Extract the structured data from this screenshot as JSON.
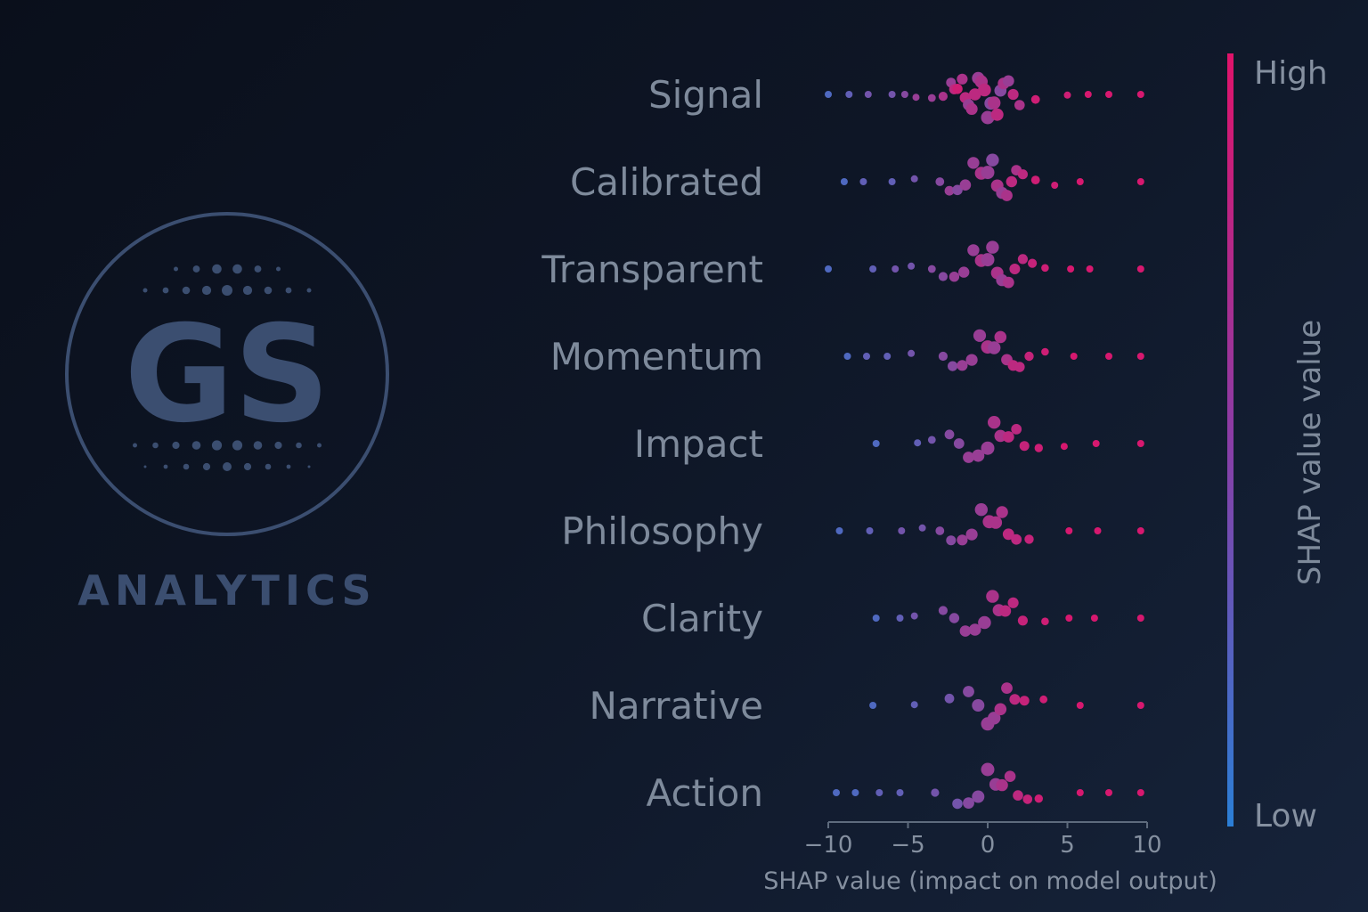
{
  "brand": {
    "logo_text": "GS",
    "logo_word": "ANALYTICS",
    "color": "#3b4e70"
  },
  "chart_data": {
    "type": "scatter",
    "subtype": "shap-beeswarm",
    "xlabel": "SHAP value (impact on model output)",
    "xlim": [
      -10,
      10
    ],
    "xticks": [
      -10,
      -5,
      0,
      5,
      10
    ],
    "xtick_labels": [
      "−10",
      "−5",
      "0",
      "5",
      "10"
    ],
    "colorbar": {
      "high_label": "High",
      "low_label": "Low",
      "title": "SHAP value value",
      "high_color": "#e0136a",
      "low_color": "#2b7fd6"
    },
    "features": [
      {
        "name": "Signal",
        "points": [
          [
            -10,
            0.2
          ],
          [
            -8.7,
            0.3
          ],
          [
            -7.5,
            0.4
          ],
          [
            -6.0,
            0.4
          ],
          [
            -5.2,
            0.5
          ],
          [
            -4.5,
            0.6
          ],
          [
            -3.5,
            0.6
          ],
          [
            -2.8,
            0.7
          ],
          [
            -2.3,
            0.6
          ],
          [
            -2.1,
            0.8
          ],
          [
            -1.9,
            0.9
          ],
          [
            -1.6,
            0.7
          ],
          [
            -1.4,
            0.8
          ],
          [
            -1.2,
            0.6
          ],
          [
            -1.0,
            0.7
          ],
          [
            -0.8,
            0.8
          ],
          [
            -0.6,
            0.6
          ],
          [
            -0.4,
            0.7
          ],
          [
            -0.2,
            0.8
          ],
          [
            0.0,
            0.6
          ],
          [
            0.2,
            0.5
          ],
          [
            0.4,
            0.7
          ],
          [
            0.6,
            0.8
          ],
          [
            0.8,
            0.5
          ],
          [
            1.0,
            0.7
          ],
          [
            1.3,
            0.6
          ],
          [
            1.6,
            0.8
          ],
          [
            2.0,
            0.7
          ],
          [
            3.0,
            0.9
          ],
          [
            5.0,
            0.9
          ],
          [
            6.3,
            0.95
          ],
          [
            7.6,
            0.95
          ],
          [
            9.6,
            0.95
          ]
        ]
      },
      {
        "name": "Calibrated",
        "points": [
          [
            -9.0,
            0.2
          ],
          [
            -7.8,
            0.3
          ],
          [
            -6.0,
            0.3
          ],
          [
            -4.6,
            0.4
          ],
          [
            -3.0,
            0.5
          ],
          [
            -2.4,
            0.6
          ],
          [
            -1.9,
            0.5
          ],
          [
            -1.4,
            0.6
          ],
          [
            -0.9,
            0.6
          ],
          [
            -0.4,
            0.7
          ],
          [
            0.0,
            0.6
          ],
          [
            0.3,
            0.5
          ],
          [
            0.6,
            0.7
          ],
          [
            0.9,
            0.6
          ],
          [
            1.2,
            0.7
          ],
          [
            1.5,
            0.8
          ],
          [
            1.8,
            0.7
          ],
          [
            2.2,
            0.8
          ],
          [
            3.0,
            0.9
          ],
          [
            4.2,
            0.9
          ],
          [
            5.8,
            0.95
          ],
          [
            9.6,
            0.95
          ]
        ]
      },
      {
        "name": "Transparent",
        "points": [
          [
            -10,
            0.2
          ],
          [
            -7.2,
            0.3
          ],
          [
            -5.8,
            0.4
          ],
          [
            -4.8,
            0.4
          ],
          [
            -3.5,
            0.5
          ],
          [
            -2.8,
            0.5
          ],
          [
            -2.1,
            0.6
          ],
          [
            -1.5,
            0.6
          ],
          [
            -0.9,
            0.6
          ],
          [
            -0.4,
            0.7
          ],
          [
            0.0,
            0.6
          ],
          [
            0.3,
            0.6
          ],
          [
            0.6,
            0.7
          ],
          [
            0.9,
            0.6
          ],
          [
            1.3,
            0.7
          ],
          [
            1.7,
            0.8
          ],
          [
            2.2,
            0.8
          ],
          [
            2.8,
            0.85
          ],
          [
            3.6,
            0.9
          ],
          [
            5.2,
            0.95
          ],
          [
            6.4,
            0.95
          ],
          [
            9.6,
            0.95
          ]
        ]
      },
      {
        "name": "Momentum",
        "points": [
          [
            -8.8,
            0.2
          ],
          [
            -7.6,
            0.3
          ],
          [
            -6.3,
            0.3
          ],
          [
            -4.8,
            0.4
          ],
          [
            -2.8,
            0.5
          ],
          [
            -2.2,
            0.5
          ],
          [
            -1.6,
            0.6
          ],
          [
            -1.0,
            0.6
          ],
          [
            -0.5,
            0.6
          ],
          [
            0.0,
            0.7
          ],
          [
            0.4,
            0.6
          ],
          [
            0.8,
            0.7
          ],
          [
            1.2,
            0.7
          ],
          [
            1.6,
            0.8
          ],
          [
            2.0,
            0.8
          ],
          [
            2.6,
            0.85
          ],
          [
            3.6,
            0.9
          ],
          [
            5.4,
            0.95
          ],
          [
            7.6,
            0.95
          ],
          [
            9.6,
            0.95
          ]
        ]
      },
      {
        "name": "Impact",
        "points": [
          [
            -7.0,
            0.2
          ],
          [
            -4.4,
            0.3
          ],
          [
            -3.5,
            0.4
          ],
          [
            -2.4,
            0.5
          ],
          [
            -1.8,
            0.5
          ],
          [
            -1.2,
            0.6
          ],
          [
            -0.6,
            0.6
          ],
          [
            0.0,
            0.6
          ],
          [
            0.4,
            0.7
          ],
          [
            0.8,
            0.7
          ],
          [
            1.3,
            0.8
          ],
          [
            1.8,
            0.8
          ],
          [
            2.3,
            0.85
          ],
          [
            3.2,
            0.9
          ],
          [
            4.8,
            0.95
          ],
          [
            6.8,
            0.95
          ],
          [
            9.6,
            0.95
          ]
        ]
      },
      {
        "name": "Philosophy",
        "points": [
          [
            -9.3,
            0.2
          ],
          [
            -7.4,
            0.3
          ],
          [
            -5.4,
            0.4
          ],
          [
            -4.1,
            0.4
          ],
          [
            -3.0,
            0.5
          ],
          [
            -2.3,
            0.5
          ],
          [
            -1.6,
            0.6
          ],
          [
            -1.0,
            0.6
          ],
          [
            -0.4,
            0.6
          ],
          [
            0.1,
            0.7
          ],
          [
            0.5,
            0.7
          ],
          [
            0.9,
            0.7
          ],
          [
            1.3,
            0.8
          ],
          [
            1.8,
            0.8
          ],
          [
            2.6,
            0.85
          ],
          [
            5.1,
            0.95
          ],
          [
            6.9,
            0.95
          ],
          [
            9.6,
            0.95
          ]
        ]
      },
      {
        "name": "Clarity",
        "points": [
          [
            -7.0,
            0.2
          ],
          [
            -5.5,
            0.3
          ],
          [
            -4.6,
            0.4
          ],
          [
            -2.8,
            0.5
          ],
          [
            -2.1,
            0.5
          ],
          [
            -1.4,
            0.6
          ],
          [
            -0.8,
            0.6
          ],
          [
            -0.2,
            0.6
          ],
          [
            0.3,
            0.7
          ],
          [
            0.7,
            0.7
          ],
          [
            1.1,
            0.8
          ],
          [
            1.6,
            0.8
          ],
          [
            2.2,
            0.85
          ],
          [
            3.6,
            0.9
          ],
          [
            5.1,
            0.95
          ],
          [
            6.7,
            0.95
          ],
          [
            9.6,
            0.95
          ]
        ]
      },
      {
        "name": "Narrative",
        "points": [
          [
            -7.2,
            0.2
          ],
          [
            -4.6,
            0.3
          ],
          [
            -2.4,
            0.4
          ],
          [
            -1.2,
            0.5
          ],
          [
            -0.6,
            0.5
          ],
          [
            0.0,
            0.6
          ],
          [
            0.4,
            0.6
          ],
          [
            0.8,
            0.7
          ],
          [
            1.2,
            0.7
          ],
          [
            1.7,
            0.8
          ],
          [
            2.3,
            0.85
          ],
          [
            3.5,
            0.9
          ],
          [
            5.8,
            0.95
          ],
          [
            9.6,
            0.95
          ]
        ]
      },
      {
        "name": "Action",
        "points": [
          [
            -9.5,
            0.2
          ],
          [
            -8.3,
            0.2
          ],
          [
            -6.8,
            0.3
          ],
          [
            -5.5,
            0.3
          ],
          [
            -3.3,
            0.4
          ],
          [
            -1.9,
            0.4
          ],
          [
            -1.2,
            0.5
          ],
          [
            -0.6,
            0.5
          ],
          [
            0.0,
            0.6
          ],
          [
            0.5,
            0.6
          ],
          [
            0.9,
            0.7
          ],
          [
            1.4,
            0.7
          ],
          [
            1.9,
            0.8
          ],
          [
            2.5,
            0.85
          ],
          [
            3.2,
            0.9
          ],
          [
            5.8,
            0.95
          ],
          [
            7.6,
            0.95
          ],
          [
            9.6,
            0.95
          ]
        ]
      }
    ]
  }
}
